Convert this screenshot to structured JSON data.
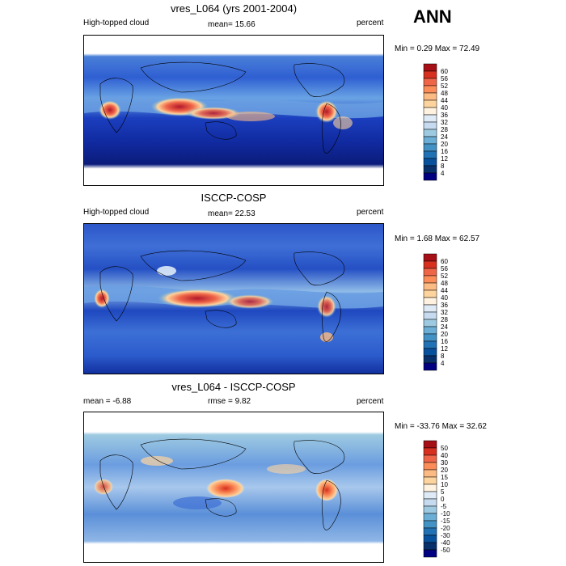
{
  "season": "ANN",
  "panels": [
    {
      "title": "vres_L064 (yrs 2001-2004)",
      "left_label": "High-topped cloud",
      "center_label": "mean=  15.66",
      "right_label": "percent",
      "minmax": "Min =   0.29 Max =  72.49",
      "colorbar_ticks": [
        "60",
        "56",
        "52",
        "48",
        "44",
        "40",
        "36",
        "32",
        "28",
        "24",
        "20",
        "16",
        "12",
        "8",
        "4"
      ]
    },
    {
      "title": "ISCCP-COSP",
      "left_label": "High-topped cloud",
      "center_label": "mean=  22.53",
      "right_label": "percent",
      "minmax": "Min =   1.68 Max =  62.57",
      "colorbar_ticks": [
        "60",
        "56",
        "52",
        "48",
        "44",
        "40",
        "36",
        "32",
        "28",
        "24",
        "20",
        "16",
        "12",
        "8",
        "4"
      ]
    },
    {
      "title": "vres_L064 - ISCCP-COSP",
      "left_label": "mean =  -6.88",
      "center_label": "rmse =   9.82",
      "right_label": "percent",
      "minmax": "Min = -33.76 Max =  32.62",
      "colorbar_ticks": [
        "50",
        "40",
        "30",
        "20",
        "15",
        "10",
        "5",
        "0",
        "-5",
        "-10",
        "-15",
        "-20",
        "-30",
        "-40",
        "-50"
      ]
    }
  ],
  "colors": {
    "scale": [
      "#a50f15",
      "#d7301f",
      "#ef6548",
      "#fc8d59",
      "#fdbb84",
      "#fdd49e",
      "#fff2e0",
      "#deebf7",
      "#c6dbef",
      "#9ecae1",
      "#6baed6",
      "#4292c6",
      "#2171b5",
      "#08519c",
      "#08306b",
      "#000080"
    ]
  },
  "chart_data": [
    {
      "type": "heatmap",
      "title": "vres_L064 (yrs 2001-2004)",
      "variable": "High-topped cloud",
      "units": "percent",
      "mean": 15.66,
      "min": 0.29,
      "max": 72.49,
      "levels": [
        4,
        8,
        12,
        16,
        20,
        24,
        28,
        32,
        36,
        40,
        44,
        48,
        52,
        56,
        60
      ]
    },
    {
      "type": "heatmap",
      "title": "ISCCP-COSP",
      "variable": "High-topped cloud",
      "units": "percent",
      "mean": 22.53,
      "min": 1.68,
      "max": 62.57,
      "levels": [
        4,
        8,
        12,
        16,
        20,
        24,
        28,
        32,
        36,
        40,
        44,
        48,
        52,
        56,
        60
      ]
    },
    {
      "type": "heatmap",
      "title": "vres_L064 - ISCCP-COSP",
      "units": "percent",
      "mean": -6.88,
      "rmse": 9.82,
      "min": -33.76,
      "max": 32.62,
      "levels": [
        -50,
        -40,
        -30,
        -20,
        -15,
        -10,
        -5,
        0,
        5,
        10,
        15,
        20,
        30,
        40,
        50
      ]
    }
  ]
}
